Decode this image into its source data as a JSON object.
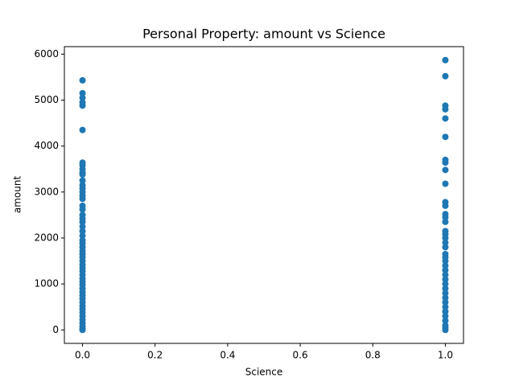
{
  "chart_data": {
    "type": "scatter",
    "title": "Personal Property: amount vs Science",
    "xlabel": "Science",
    "ylabel": "amount",
    "color": "#1f77b4",
    "x": [
      0,
      0,
      0,
      0,
      0,
      0,
      0,
      0,
      0,
      0,
      0,
      0,
      0,
      0,
      0,
      0,
      0,
      0,
      0,
      0,
      0,
      0,
      0,
      0,
      0,
      0,
      0,
      0,
      0,
      0,
      0,
      0,
      0,
      0,
      0,
      0,
      0,
      0,
      0,
      0,
      0,
      0,
      0,
      0,
      0,
      0,
      0,
      0,
      0,
      0,
      0,
      0,
      0,
      1,
      1,
      1,
      1,
      1,
      1,
      1,
      1,
      1,
      1,
      1,
      1,
      1,
      1,
      1,
      1,
      1,
      1,
      1,
      1,
      1,
      1,
      1,
      1,
      1,
      1,
      1,
      1,
      1,
      1,
      1,
      1,
      1,
      1,
      1,
      1,
      1,
      1,
      1
    ],
    "y": [
      5430,
      5150,
      5050,
      4950,
      4880,
      4350,
      3640,
      3580,
      3500,
      3420,
      3380,
      3250,
      3150,
      3080,
      3000,
      2920,
      2850,
      2700,
      2620,
      2500,
      2420,
      2350,
      2250,
      2150,
      2050,
      1950,
      1880,
      1800,
      1720,
      1650,
      1580,
      1500,
      1420,
      1350,
      1280,
      1200,
      1120,
      1050,
      980,
      900,
      820,
      750,
      680,
      600,
      520,
      450,
      380,
      300,
      220,
      150,
      80,
      30,
      0,
      5870,
      5520,
      4880,
      4800,
      4600,
      4200,
      3700,
      3640,
      3480,
      3180,
      2780,
      2700,
      2520,
      2450,
      2350,
      2150,
      2080,
      2000,
      1900,
      1800,
      1650,
      1580,
      1500,
      1400,
      1300,
      1200,
      1100,
      1000,
      900,
      800,
      700,
      600,
      500,
      400,
      300,
      200,
      100,
      50,
      0
    ],
    "xlim": [
      -0.05,
      1.05
    ],
    "ylim": [
      -293,
      6163
    ],
    "xticks": [
      {
        "value": 0,
        "label": "0.0"
      },
      {
        "value": 0.2,
        "label": "0.2"
      },
      {
        "value": 0.4,
        "label": "0.4"
      },
      {
        "value": 0.6,
        "label": "0.6"
      },
      {
        "value": 0.8,
        "label": "0.8"
      },
      {
        "value": 1,
        "label": "1.0"
      }
    ],
    "yticks": [
      0,
      1000,
      2000,
      3000,
      4000,
      5000,
      6000
    ]
  }
}
